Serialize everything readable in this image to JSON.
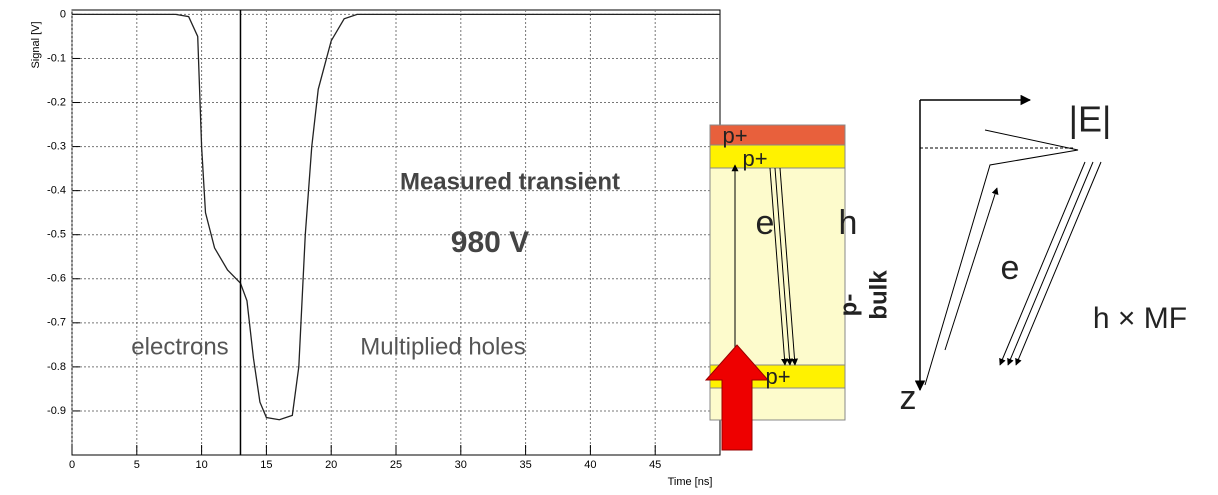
{
  "chart_data": {
    "type": "line",
    "x_label": "Time [ns]",
    "y_label": "Signal [V]",
    "x": [
      0,
      8,
      9,
      9.7,
      10,
      10.3,
      11,
      12,
      13,
      13.5,
      14,
      14.5,
      15,
      16,
      17,
      17.5,
      18,
      18.5,
      19,
      20,
      21,
      22,
      50
    ],
    "series": [
      {
        "color": "#222222",
        "values": [
          0,
          0,
          -0.005,
          -0.05,
          -0.3,
          -0.45,
          -0.53,
          -0.58,
          -0.61,
          -0.65,
          -0.78,
          -0.88,
          -0.915,
          -0.92,
          -0.91,
          -0.8,
          -0.5,
          -0.3,
          -0.17,
          -0.06,
          -0.01,
          0,
          0
        ]
      }
    ],
    "xlim": [
      0,
      50
    ],
    "ylim": [
      -1,
      0.01
    ],
    "xticks": [
      0,
      5,
      10,
      15,
      20,
      25,
      30,
      35,
      40,
      45
    ],
    "yticks": [
      0,
      -0.1,
      -0.2,
      -0.3,
      -0.4,
      -0.5,
      -0.6,
      -0.7,
      -0.8,
      -0.9
    ],
    "grid": true,
    "vline": 13,
    "annotations": [
      "Measured transient",
      "980 V",
      "electrons",
      "Multiplied holes"
    ]
  },
  "diagram": {
    "labels": [
      "p+",
      "p+",
      "e",
      "h",
      "p-",
      "bulk",
      "p+",
      "|E|",
      "e",
      "h × MF",
      "z"
    ]
  }
}
